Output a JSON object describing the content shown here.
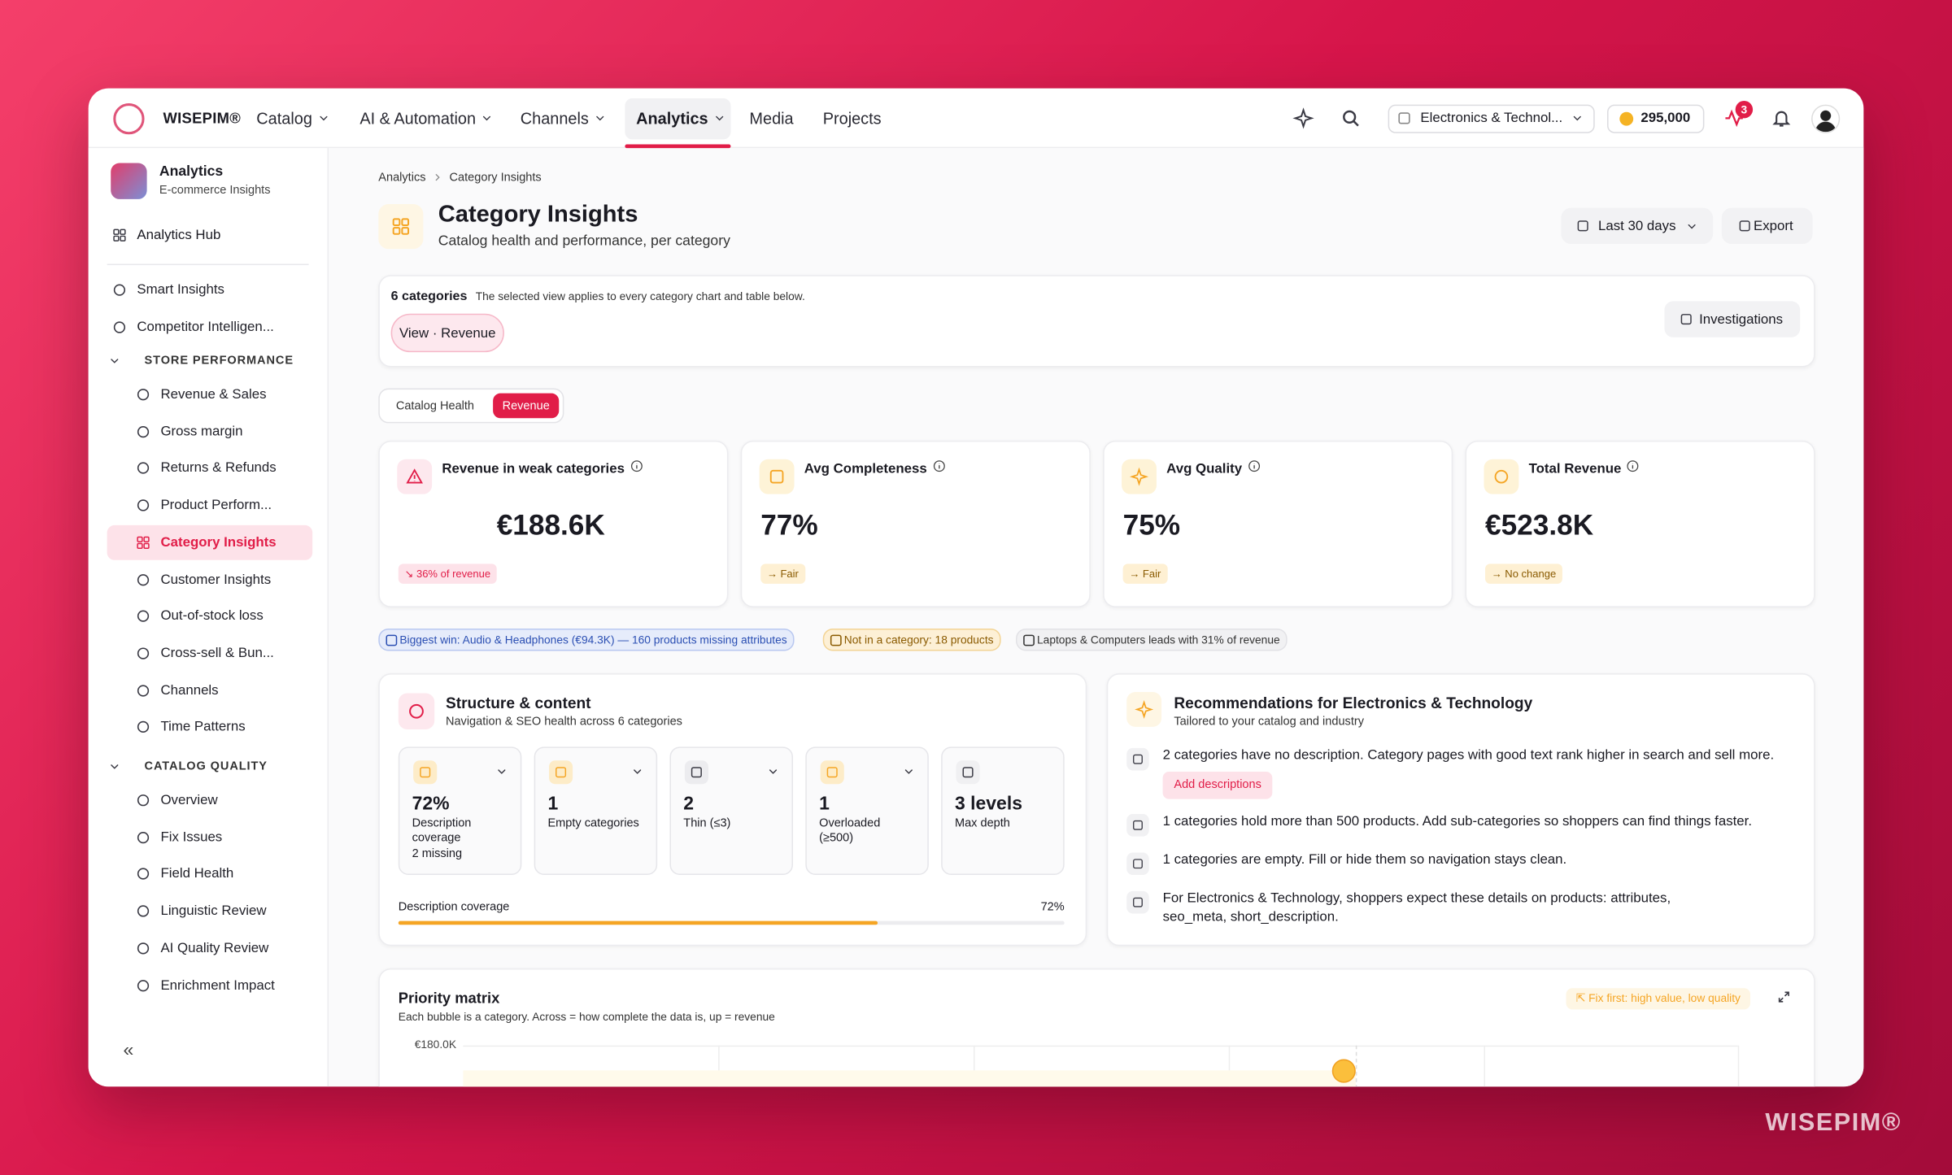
{
  "header": {
    "brand": "WISEPIM®",
    "nav": [
      "Catalog",
      "AI & Automation",
      "Channels",
      "Analytics",
      "Media",
      "Projects"
    ],
    "active": "Analytics",
    "store": "Electronics & Technol...",
    "credits": "295,000",
    "notifications": "3"
  },
  "sidebar": {
    "title": "Analytics",
    "subtitle": "E-commerce Insights",
    "hub": "Analytics Hub",
    "items": [
      "Smart Insights",
      "Competitor Intelligen..."
    ],
    "sections": [
      {
        "title": "STORE PERFORMANCE",
        "items": [
          "Revenue & Sales",
          "Gross margin",
          "Returns & Refunds",
          "Product Perform...",
          "Category Insights",
          "Customer Insights",
          "Out-of-stock loss",
          "Cross-sell & Bun...",
          "Channels",
          "Time Patterns"
        ]
      },
      {
        "title": "CATALOG QUALITY",
        "items": [
          "Overview",
          "Fix Issues",
          "Field Health",
          "Linguistic Review",
          "AI Quality Review",
          "Enrichment Impact"
        ]
      }
    ],
    "active": "Category Insights",
    "collapse": "«"
  },
  "page": {
    "breadcrumb": [
      "Analytics",
      "Category Insights"
    ],
    "title": "Category Insights",
    "subtitle": "Catalog health and performance, per category",
    "range": "Last 30 days",
    "export": "Export"
  },
  "filter": {
    "count": "6 categories",
    "note": "The selected view applies to every category chart and table below.",
    "view": "View · Revenue",
    "investigations": "Investigations"
  },
  "tabs": {
    "items": [
      "Catalog Health",
      "Revenue"
    ],
    "active": "Revenue"
  },
  "kpis": [
    {
      "label": "Revenue in weak categories",
      "value": "€188.6K",
      "badge": "↘ 36% of revenue"
    },
    {
      "label": "Avg Completeness",
      "value": "77%",
      "badge": "→ Fair"
    },
    {
      "label": "Avg Quality",
      "value": "75%",
      "badge": "→ Fair"
    },
    {
      "label": "Total Revenue",
      "value": "€523.8K",
      "badge": "→ No change"
    }
  ],
  "chips": [
    "Biggest win: Audio & Headphones (€94.3K) — 160 products missing attributes",
    "Not in a category: 18 products",
    "Laptops & Computers leads with 31% of revenue"
  ],
  "structure": {
    "title": "Structure & content",
    "subtitle": "Navigation & SEO health across 6 categories",
    "stats": [
      {
        "value": "72%",
        "label": "Description coverage",
        "note": "2 missing"
      },
      {
        "value": "1",
        "label": "Empty categories"
      },
      {
        "value": "2",
        "label": "Thin (≤3)"
      },
      {
        "value": "1",
        "label": "Overloaded (≥500)"
      },
      {
        "value": "3 levels",
        "label": "Max depth"
      }
    ],
    "coverage": {
      "label": "Description coverage",
      "value": 72,
      "value_label": "72%"
    }
  },
  "recommendations": {
    "title": "Recommendations for Electronics & Technology",
    "subtitle": "Tailored to your catalog and industry",
    "items": [
      {
        "text": "2 categories have no description. Category pages with good text rank higher in search and sell more.",
        "action": "Add descriptions"
      },
      {
        "text": "1 categories hold more than 500 products. Add sub-categories so shoppers can find things faster."
      },
      {
        "text": "1 categories are empty. Fill or hide them so navigation stays clean."
      },
      {
        "text": "For Electronics & Technology, shoppers expect these details on products: attributes, seo_meta, short_description."
      }
    ]
  },
  "matrix": {
    "title": "Priority matrix",
    "subtitle": "Each bubble is a category. Across = how complete the data is, up = revenue",
    "badge": "⇱ Fix first: high value, low quality",
    "ytick": "€180.0K"
  },
  "watermark": "WISEPIM®"
}
